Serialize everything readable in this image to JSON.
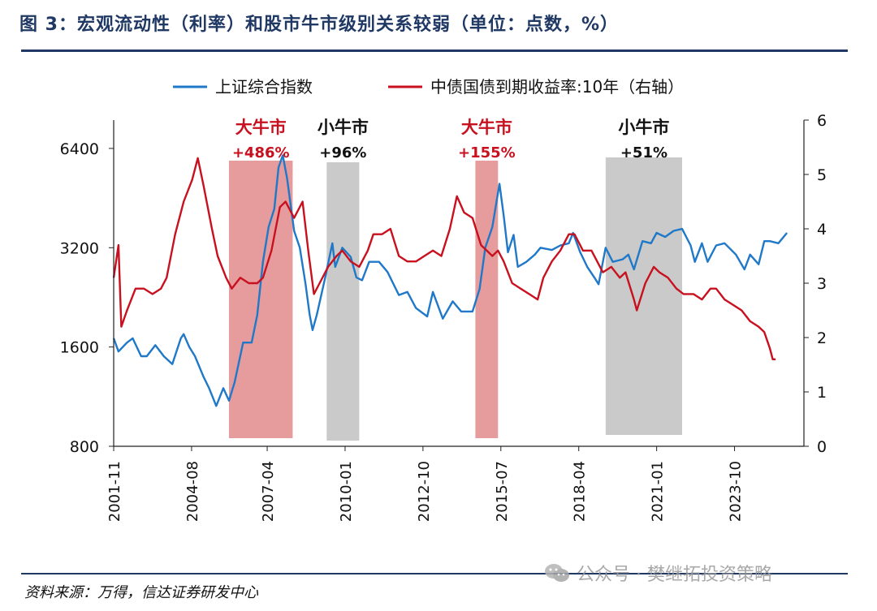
{
  "figure_title": "图 3：宏观流动性（利率）和股市牛市级别关系较弱（单位：点数，%）",
  "source": "资料来源：万得，信达证券研发中心",
  "watermark": "公众号 · 樊继拓投资策略",
  "colors": {
    "index": "#1f78c8",
    "bond": "#c8101e",
    "big_bull": "#e28a8c",
    "small_bull": "#c4c4c4",
    "axis": "#222222"
  },
  "chart_data": {
    "type": "line",
    "x_tick_labels": [
      "2001-11",
      "2004-08",
      "2007-04",
      "2010-01",
      "2012-10",
      "2015-07",
      "2018-04",
      "2021-01",
      "2023-10"
    ],
    "x_tick_values": [
      2001.83,
      2004.58,
      2007.25,
      2010.0,
      2012.75,
      2015.5,
      2018.25,
      2021.0,
      2023.75
    ],
    "xlim": [
      2001.83,
      2026.2
    ],
    "y_left": {
      "scale": "log2",
      "ticks": [
        800,
        1600,
        3200,
        6400
      ],
      "ylim": [
        800,
        7800
      ]
    },
    "y_right": {
      "ticks": [
        0,
        1,
        2,
        3,
        4,
        5,
        6
      ],
      "ylim": [
        0,
        6
      ]
    },
    "legend": {
      "placement": "top",
      "entries": [
        "上证综合指数",
        "中债国债到期收益率:10年（右轴）"
      ]
    },
    "series": [
      {
        "name": "上证综合指数",
        "axis": "left",
        "points": [
          [
            2001.83,
            1700
          ],
          [
            2002.0,
            1550
          ],
          [
            2002.3,
            1650
          ],
          [
            2002.5,
            1700
          ],
          [
            2002.8,
            1500
          ],
          [
            2003.0,
            1500
          ],
          [
            2003.3,
            1620
          ],
          [
            2003.6,
            1500
          ],
          [
            2003.9,
            1420
          ],
          [
            2004.2,
            1700
          ],
          [
            2004.3,
            1750
          ],
          [
            2004.5,
            1600
          ],
          [
            2004.7,
            1500
          ],
          [
            2005.0,
            1300
          ],
          [
            2005.2,
            1200
          ],
          [
            2005.45,
            1060
          ],
          [
            2005.7,
            1200
          ],
          [
            2005.9,
            1100
          ],
          [
            2006.1,
            1250
          ],
          [
            2006.4,
            1650
          ],
          [
            2006.7,
            1650
          ],
          [
            2006.9,
            2000
          ],
          [
            2007.1,
            2900
          ],
          [
            2007.3,
            3700
          ],
          [
            2007.5,
            4200
          ],
          [
            2007.65,
            5600
          ],
          [
            2007.8,
            6100
          ],
          [
            2007.95,
            5200
          ],
          [
            2008.2,
            3600
          ],
          [
            2008.4,
            3200
          ],
          [
            2008.6,
            2500
          ],
          [
            2008.75,
            2000
          ],
          [
            2008.85,
            1800
          ],
          [
            2009.0,
            2000
          ],
          [
            2009.3,
            2600
          ],
          [
            2009.55,
            3300
          ],
          [
            2009.65,
            2800
          ],
          [
            2009.9,
            3200
          ],
          [
            2010.2,
            3000
          ],
          [
            2010.4,
            2600
          ],
          [
            2010.6,
            2550
          ],
          [
            2010.85,
            2900
          ],
          [
            2011.2,
            2900
          ],
          [
            2011.5,
            2700
          ],
          [
            2011.9,
            2300
          ],
          [
            2012.2,
            2350
          ],
          [
            2012.5,
            2100
          ],
          [
            2012.9,
            1980
          ],
          [
            2013.1,
            2350
          ],
          [
            2013.45,
            1950
          ],
          [
            2013.8,
            2200
          ],
          [
            2014.1,
            2050
          ],
          [
            2014.5,
            2050
          ],
          [
            2014.75,
            2400
          ],
          [
            2014.95,
            3200
          ],
          [
            2015.2,
            3700
          ],
          [
            2015.45,
            5000
          ],
          [
            2015.6,
            4000
          ],
          [
            2015.75,
            3100
          ],
          [
            2015.95,
            3500
          ],
          [
            2016.1,
            2800
          ],
          [
            2016.4,
            2900
          ],
          [
            2016.7,
            3050
          ],
          [
            2016.9,
            3200
          ],
          [
            2017.3,
            3150
          ],
          [
            2017.6,
            3250
          ],
          [
            2017.9,
            3300
          ],
          [
            2018.05,
            3550
          ],
          [
            2018.3,
            3100
          ],
          [
            2018.55,
            2800
          ],
          [
            2018.8,
            2600
          ],
          [
            2018.95,
            2480
          ],
          [
            2019.2,
            3200
          ],
          [
            2019.45,
            2900
          ],
          [
            2019.8,
            2950
          ],
          [
            2020.0,
            3050
          ],
          [
            2020.2,
            2750
          ],
          [
            2020.5,
            3350
          ],
          [
            2020.8,
            3300
          ],
          [
            2021.0,
            3550
          ],
          [
            2021.3,
            3450
          ],
          [
            2021.6,
            3600
          ],
          [
            2021.9,
            3650
          ],
          [
            2022.2,
            3250
          ],
          [
            2022.35,
            2900
          ],
          [
            2022.6,
            3300
          ],
          [
            2022.8,
            2900
          ],
          [
            2023.1,
            3250
          ],
          [
            2023.4,
            3300
          ],
          [
            2023.8,
            3050
          ],
          [
            2024.1,
            2750
          ],
          [
            2024.3,
            3050
          ],
          [
            2024.6,
            2850
          ],
          [
            2024.8,
            3350
          ],
          [
            2025.0,
            3350
          ],
          [
            2025.3,
            3300
          ],
          [
            2025.6,
            3550
          ]
        ]
      },
      {
        "name": "中债国债到期收益率:10年（右轴）",
        "axis": "right",
        "points": [
          [
            2001.83,
            3.1
          ],
          [
            2002.0,
            3.7
          ],
          [
            2002.1,
            2.2
          ],
          [
            2002.3,
            2.5
          ],
          [
            2002.6,
            2.9
          ],
          [
            2002.9,
            2.9
          ],
          [
            2003.2,
            2.8
          ],
          [
            2003.5,
            2.9
          ],
          [
            2003.7,
            3.1
          ],
          [
            2004.0,
            3.9
          ],
          [
            2004.3,
            4.5
          ],
          [
            2004.6,
            4.9
          ],
          [
            2004.8,
            5.3
          ],
          [
            2005.0,
            4.8
          ],
          [
            2005.3,
            4.0
          ],
          [
            2005.5,
            3.5
          ],
          [
            2005.8,
            3.1
          ],
          [
            2006.0,
            2.9
          ],
          [
            2006.3,
            3.1
          ],
          [
            2006.6,
            3.0
          ],
          [
            2006.9,
            3.0
          ],
          [
            2007.1,
            3.1
          ],
          [
            2007.4,
            3.6
          ],
          [
            2007.7,
            4.4
          ],
          [
            2007.9,
            4.5
          ],
          [
            2008.2,
            4.2
          ],
          [
            2008.5,
            4.5
          ],
          [
            2008.7,
            3.6
          ],
          [
            2008.9,
            2.8
          ],
          [
            2009.1,
            3.0
          ],
          [
            2009.4,
            3.3
          ],
          [
            2009.7,
            3.5
          ],
          [
            2009.9,
            3.6
          ],
          [
            2010.2,
            3.4
          ],
          [
            2010.5,
            3.3
          ],
          [
            2010.8,
            3.6
          ],
          [
            2011.0,
            3.9
          ],
          [
            2011.3,
            3.9
          ],
          [
            2011.6,
            4.0
          ],
          [
            2011.9,
            3.5
          ],
          [
            2012.2,
            3.4
          ],
          [
            2012.5,
            3.4
          ],
          [
            2012.8,
            3.5
          ],
          [
            2013.1,
            3.6
          ],
          [
            2013.4,
            3.5
          ],
          [
            2013.7,
            4.0
          ],
          [
            2013.95,
            4.6
          ],
          [
            2014.2,
            4.3
          ],
          [
            2014.5,
            4.2
          ],
          [
            2014.8,
            3.7
          ],
          [
            2015.0,
            3.6
          ],
          [
            2015.2,
            3.5
          ],
          [
            2015.4,
            3.6
          ],
          [
            2015.6,
            3.4
          ],
          [
            2015.9,
            3.0
          ],
          [
            2016.2,
            2.9
          ],
          [
            2016.5,
            2.8
          ],
          [
            2016.8,
            2.7
          ],
          [
            2017.0,
            3.1
          ],
          [
            2017.3,
            3.4
          ],
          [
            2017.6,
            3.6
          ],
          [
            2017.9,
            3.9
          ],
          [
            2018.1,
            3.9
          ],
          [
            2018.4,
            3.6
          ],
          [
            2018.7,
            3.6
          ],
          [
            2018.9,
            3.4
          ],
          [
            2019.1,
            3.2
          ],
          [
            2019.4,
            3.3
          ],
          [
            2019.7,
            3.1
          ],
          [
            2019.9,
            3.2
          ],
          [
            2020.2,
            2.7
          ],
          [
            2020.3,
            2.5
          ],
          [
            2020.6,
            3.0
          ],
          [
            2020.9,
            3.3
          ],
          [
            2021.1,
            3.2
          ],
          [
            2021.4,
            3.1
          ],
          [
            2021.7,
            2.9
          ],
          [
            2021.95,
            2.8
          ],
          [
            2022.3,
            2.8
          ],
          [
            2022.6,
            2.7
          ],
          [
            2022.9,
            2.9
          ],
          [
            2023.1,
            2.9
          ],
          [
            2023.4,
            2.7
          ],
          [
            2023.7,
            2.6
          ],
          [
            2024.0,
            2.5
          ],
          [
            2024.3,
            2.3
          ],
          [
            2024.6,
            2.2
          ],
          [
            2024.8,
            2.1
          ],
          [
            2025.0,
            1.8
          ],
          [
            2025.1,
            1.6
          ],
          [
            2025.2,
            1.6
          ]
        ]
      }
    ],
    "annotations": [
      {
        "kind": "big_bull",
        "label": "大牛市",
        "change": "+486%",
        "x_start": 2005.9,
        "x_end": 2008.15
      },
      {
        "kind": "small_bull",
        "label": "小牛市",
        "change": "+96%",
        "x_start": 2009.35,
        "x_end": 2010.5
      },
      {
        "kind": "big_bull",
        "label": "大牛市",
        "change": "+155%",
        "x_start": 2014.6,
        "x_end": 2015.4
      },
      {
        "kind": "small_bull",
        "label": "小牛市",
        "change": "+51%",
        "x_start": 2019.2,
        "x_end": 2021.9
      }
    ]
  }
}
